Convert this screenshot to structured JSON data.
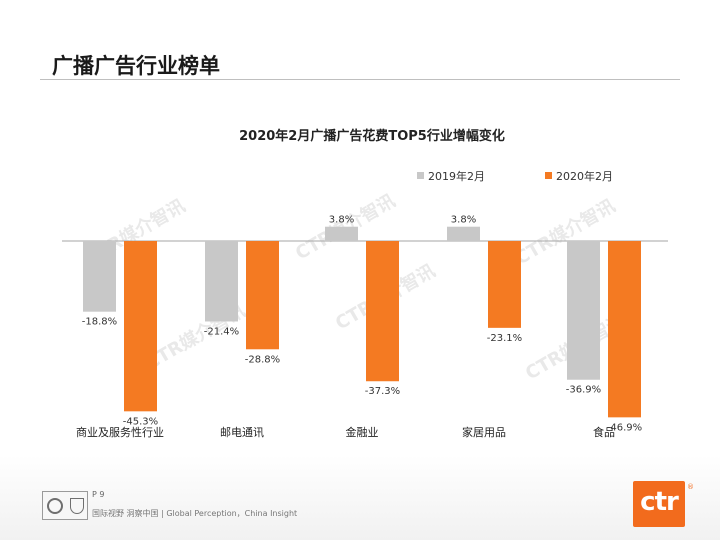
{
  "page": {
    "title": "广播广告行业榜单"
  },
  "footer": {
    "page_number": "P 9",
    "slogan": "国际视野  洞察中国 |  Global Perception，China Insight",
    "logo_text": "ctr",
    "logo_mark": "®"
  },
  "colors": {
    "series_2019": "#c8c8c8",
    "series_2020": "#f47a22",
    "accent": "#f26b1d"
  },
  "chart_data": {
    "type": "bar",
    "title": "2020年2月广播广告花费TOP5行业增幅变化",
    "categories": [
      "商业及服务性行业",
      "邮电通讯",
      "金融业",
      "家居用品",
      "食品"
    ],
    "series": [
      {
        "name": "2019年2月",
        "values": [
          -18.8,
          -21.4,
          3.8,
          3.8,
          -36.9
        ],
        "labels": [
          "-18.8%",
          "-21.4%",
          "3.8%",
          "3.8%",
          "-36.9%"
        ]
      },
      {
        "name": "2020年2月",
        "values": [
          -45.3,
          -28.8,
          -37.3,
          -23.1,
          -46.9
        ],
        "labels": [
          "-45.3%",
          "-28.8%",
          "-37.3%",
          "-23.1%",
          "-46.9%"
        ]
      }
    ],
    "legend_position": "top-right",
    "unit": "%",
    "ylim": [
      -50,
      5
    ],
    "grid": false
  }
}
